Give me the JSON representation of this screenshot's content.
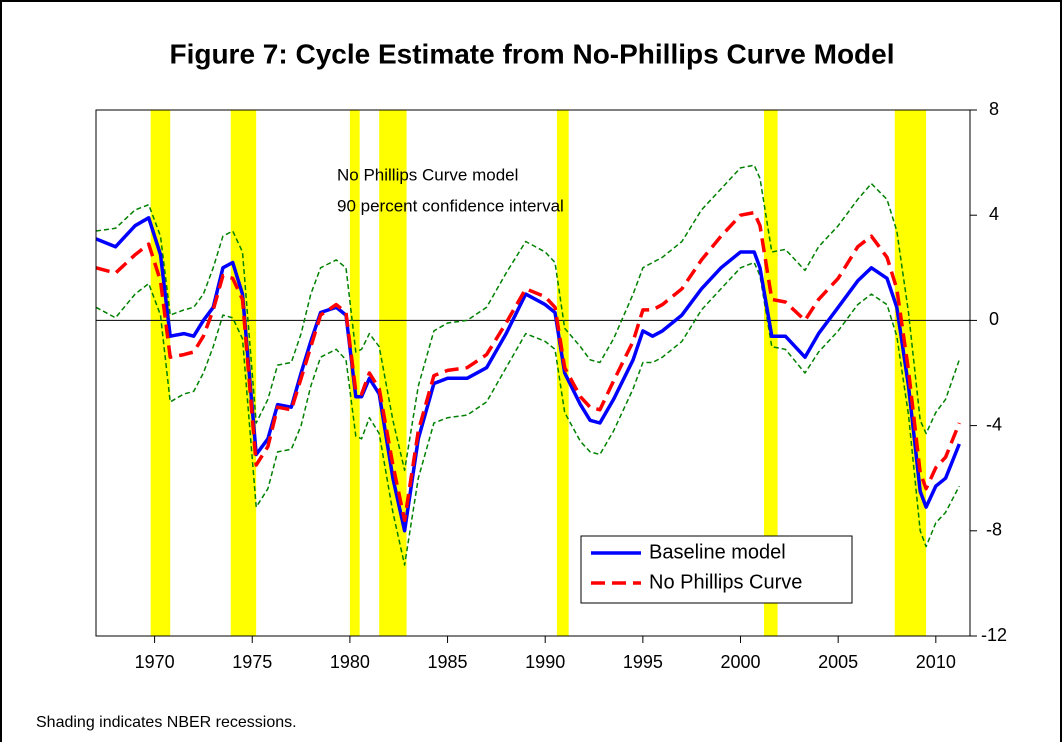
{
  "chart_data": {
    "type": "line",
    "title": "Figure 7:  Cycle Estimate from No-Phillips Curve Model",
    "annotations": [
      "No Phillips Curve model",
      "90 percent confidence interval"
    ],
    "footnote": "Shading indicates NBER recessions.",
    "xlim": [
      1967,
      2011.75
    ],
    "xticks": [
      1970,
      1975,
      1980,
      1985,
      1990,
      1995,
      2000,
      2005,
      2010
    ],
    "ylim": [
      -12,
      8
    ],
    "yticks": [
      8,
      4,
      0,
      -4,
      -8,
      -12
    ],
    "recession_color": "#ffff00",
    "recessions": [
      [
        1969.8,
        1970.8
      ],
      [
        1973.9,
        1975.2
      ],
      [
        1980.0,
        1980.5
      ],
      [
        1981.5,
        1982.9
      ],
      [
        1990.6,
        1991.2
      ],
      [
        2001.2,
        2001.9
      ],
      [
        2007.9,
        2009.5
      ]
    ],
    "x": [
      1967,
      1968,
      1969,
      1969.7,
      1970.3,
      1970.8,
      1971.5,
      1972,
      1972.5,
      1973,
      1973.5,
      1974,
      1974.5,
      1975.2,
      1975.8,
      1976.3,
      1977,
      1977.5,
      1978,
      1978.5,
      1979.3,
      1979.8,
      1980.3,
      1980.6,
      1981,
      1981.5,
      1982.2,
      1982.8,
      1983.5,
      1984.3,
      1985,
      1986,
      1987,
      1988,
      1989,
      1990,
      1990.5,
      1991,
      1991.8,
      1992.3,
      1992.8,
      1993.5,
      1994.5,
      1995,
      1995.5,
      1996,
      1997,
      1998,
      1999,
      2000,
      2000.7,
      2001,
      2001.6,
      2002.3,
      2003.3,
      2004,
      2005,
      2006,
      2006.7,
      2007.5,
      2008,
      2008.6,
      2009.2,
      2009.5,
      2010,
      2010.5,
      2011.2
    ],
    "series": [
      {
        "name": "Baseline model",
        "color": "#0000ff",
        "dashed": false,
        "values": [
          3.1,
          2.8,
          3.6,
          3.9,
          2.5,
          -0.6,
          -0.5,
          -0.6,
          0.0,
          0.5,
          2.0,
          2.2,
          1.0,
          -5.1,
          -4.5,
          -3.2,
          -3.3,
          -2.0,
          -0.8,
          0.3,
          0.5,
          0.2,
          -2.9,
          -2.9,
          -2.2,
          -2.8,
          -6.0,
          -8.0,
          -4.5,
          -2.4,
          -2.2,
          -2.2,
          -1.8,
          -0.5,
          1.0,
          0.6,
          0.3,
          -2.0,
          -3.2,
          -3.8,
          -3.9,
          -3.0,
          -1.5,
          -0.4,
          -0.6,
          -0.4,
          0.2,
          1.2,
          2.0,
          2.6,
          2.6,
          2.0,
          -0.6,
          -0.6,
          -1.4,
          -0.5,
          0.5,
          1.5,
          2.0,
          1.6,
          0.5,
          -2.5,
          -6.5,
          -7.1,
          -6.3,
          -6.0,
          -4.7
        ]
      },
      {
        "name": "No Phillips Curve",
        "color": "#ff0000",
        "dashed": true,
        "values": [
          2.0,
          1.8,
          2.5,
          2.9,
          1.5,
          -1.4,
          -1.3,
          -1.2,
          -0.6,
          0.4,
          1.7,
          1.6,
          0.8,
          -5.5,
          -4.8,
          -3.3,
          -3.4,
          -2.2,
          -1.0,
          0.2,
          0.6,
          0.3,
          -2.7,
          -2.8,
          -2.0,
          -2.6,
          -5.5,
          -7.6,
          -4.2,
          -2.1,
          -1.9,
          -1.8,
          -1.3,
          -0.1,
          1.2,
          0.9,
          0.5,
          -1.8,
          -2.9,
          -3.3,
          -3.4,
          -2.3,
          -0.8,
          0.4,
          0.4,
          0.6,
          1.2,
          2.3,
          3.2,
          4.0,
          4.1,
          3.6,
          0.8,
          0.7,
          0.0,
          0.8,
          1.6,
          2.8,
          3.2,
          2.4,
          1.2,
          -1.9,
          -5.8,
          -6.4,
          -5.6,
          -5.2,
          -3.9
        ]
      }
    ],
    "confidence_interval": {
      "color": "#008000",
      "upper": [
        3.4,
        3.5,
        4.2,
        4.4,
        3.2,
        0.2,
        0.4,
        0.5,
        1.0,
        2.0,
        3.2,
        3.4,
        2.6,
        -3.9,
        -3.0,
        -1.7,
        -1.6,
        -0.5,
        1.0,
        2.0,
        2.3,
        2.0,
        -1.2,
        -1.1,
        -0.5,
        -1.0,
        -3.8,
        -5.7,
        -2.5,
        -0.4,
        -0.1,
        0.0,
        0.5,
        1.8,
        3.0,
        2.6,
        2.2,
        -0.3,
        -1.0,
        -1.5,
        -1.6,
        -0.7,
        1.0,
        2.0,
        2.2,
        2.4,
        3.0,
        4.2,
        5.0,
        5.8,
        5.9,
        5.4,
        2.6,
        2.7,
        1.9,
        2.8,
        3.6,
        4.6,
        5.2,
        4.6,
        3.4,
        0.3,
        -3.8,
        -4.3,
        -3.5,
        -3.0,
        -1.5
      ],
      "lower": [
        0.5,
        0.1,
        1.0,
        1.4,
        0.2,
        -3.1,
        -2.8,
        -2.7,
        -2.0,
        -1.0,
        0.2,
        0.1,
        -0.7,
        -7.1,
        -6.4,
        -5.0,
        -4.9,
        -4.0,
        -2.5,
        -1.4,
        -1.1,
        -1.5,
        -4.4,
        -4.5,
        -3.7,
        -4.3,
        -7.3,
        -9.3,
        -6.0,
        -3.9,
        -3.7,
        -3.6,
        -3.1,
        -1.8,
        -0.5,
        -0.8,
        -1.1,
        -3.5,
        -4.6,
        -5.0,
        -5.1,
        -4.2,
        -2.6,
        -1.6,
        -1.6,
        -1.4,
        -0.8,
        0.4,
        1.2,
        2.0,
        2.2,
        1.7,
        -1.0,
        -1.1,
        -2.0,
        -1.2,
        -0.4,
        0.6,
        1.0,
        0.6,
        -0.6,
        -3.6,
        -8.0,
        -8.6,
        -7.7,
        -7.3,
        -6.3
      ]
    }
  }
}
